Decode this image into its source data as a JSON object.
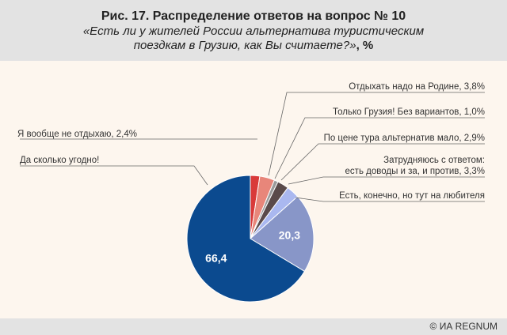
{
  "header": {
    "title": "Рис. 17. Распределение ответов на вопрос № 10",
    "subtitle_line1": "«Есть ли у жителей России альтернатива туристическим",
    "subtitle_line2": "поездкам в Грузию, как Вы считаете?»",
    "subtitle_unit": ", %"
  },
  "footer": {
    "credit": "© ИА REGNUM"
  },
  "chart_data": {
    "type": "pie",
    "title": "Рис. 17. Распределение ответов на вопрос № 10",
    "slices": [
      {
        "label": "Я вообще не отдыхаю, 2,4%",
        "value": 2.4,
        "color": "#d93a3a"
      },
      {
        "label": "Отдыхать надо на Родине, 3,8%",
        "value": 3.8,
        "color": "#e8867a"
      },
      {
        "label": "Только Грузия! Без вариантов, 1,0%",
        "value": 1.0,
        "color": "#9a9a9a"
      },
      {
        "label": "По цене тура альтернатив мало, 2,9%",
        "value": 2.9,
        "color": "#5a4a4a"
      },
      {
        "label_line1": "Затрудняюсь с ответом:",
        "label_line2": "есть доводы и за, и против, 3,3%",
        "value": 3.3,
        "color": "#aab8f0"
      },
      {
        "label": "Есть, конечно, но тут на любителя",
        "value": 20.3,
        "value_label": "20,3",
        "color": "#8896c8"
      },
      {
        "label": "Да сколько угодно!",
        "value": 66.4,
        "value_label": "66,4",
        "color": "#0b4a8f"
      }
    ]
  }
}
